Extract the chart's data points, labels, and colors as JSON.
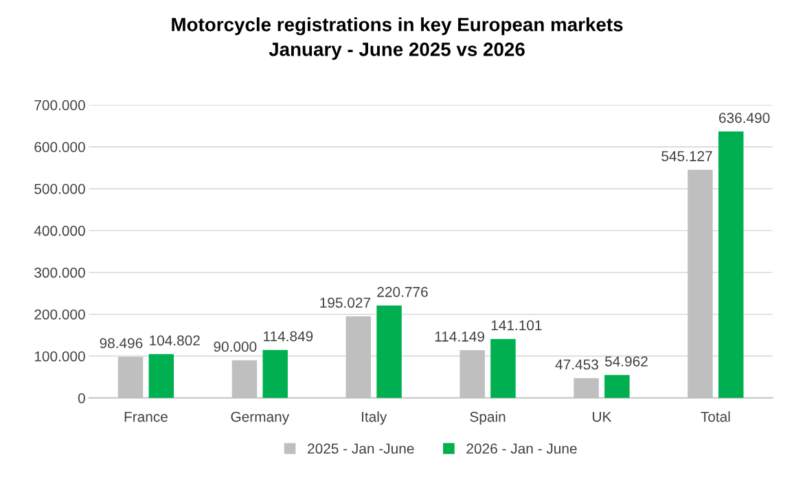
{
  "chart_data": {
    "type": "bar",
    "title": "Motorcycle registrations in key European markets\nJanuary - June 2025 vs 2026",
    "categories": [
      "France",
      "Germany",
      "Italy",
      "Spain",
      "UK",
      "Total"
    ],
    "series": [
      {
        "name": "2025 - Jan -June",
        "color": "#bfbfbf",
        "values": [
          98496,
          90000,
          195027,
          114149,
          47453,
          545127
        ],
        "value_labels": [
          "98.496",
          "90.000",
          "195.027",
          "114.149",
          "47.453",
          "545.127"
        ]
      },
      {
        "name": "2026 - Jan - June",
        "color": "#00b050",
        "values": [
          104802,
          114849,
          220776,
          141101,
          54962,
          636490
        ],
        "value_labels": [
          "104.802",
          "114.849",
          "220.776",
          "141.101",
          "54.962",
          "636.490"
        ]
      }
    ],
    "ylim": [
      0,
      700000
    ],
    "yticks": [
      {
        "value": 0,
        "label": "0"
      },
      {
        "value": 100000,
        "label": "100.000"
      },
      {
        "value": 200000,
        "label": "200.000"
      },
      {
        "value": 300000,
        "label": "300.000"
      },
      {
        "value": 400000,
        "label": "400.000"
      },
      {
        "value": 500000,
        "label": "500.000"
      },
      {
        "value": 600000,
        "label": "600.000"
      },
      {
        "value": 700000,
        "label": "700.000"
      }
    ],
    "grid": "y",
    "legend": "bottom"
  }
}
